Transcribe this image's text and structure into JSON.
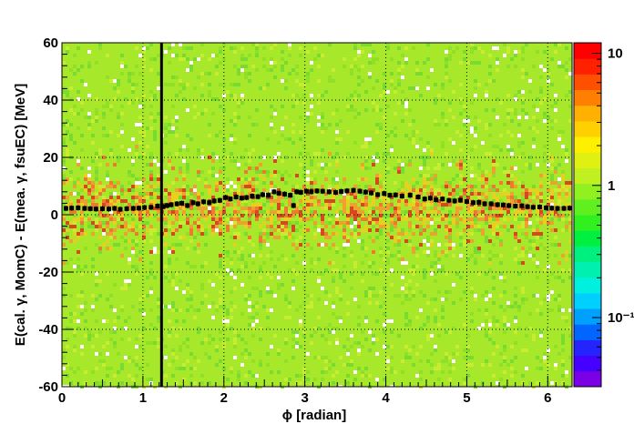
{
  "chart_data": {
    "type": "heatmap",
    "title": "",
    "xlabel": "ϕ [radian]",
    "ylabel": "E(cal. γ, MomC) - E(mea. γ, fsuEC) [MeV]",
    "xlim": [
      0,
      6.3
    ],
    "ylim": [
      -60,
      60
    ],
    "x_ticks": [
      "0",
      "1",
      "2",
      "3",
      "4",
      "5",
      "6"
    ],
    "y_ticks": [
      "-60",
      "-40",
      "-20",
      "0",
      "20",
      "40",
      "60"
    ],
    "colorbar": {
      "scale": "log",
      "range": [
        0.03,
        12
      ],
      "tick_labels": [
        "10",
        "1",
        "10⁻¹"
      ],
      "tick_values": [
        10,
        1,
        0.1
      ],
      "colors": [
        "#7a00e6",
        "#4600ff",
        "#2424ff",
        "#0066ff",
        "#00a0ff",
        "#00d0ff",
        "#00f0e0",
        "#00f0b0",
        "#00f080",
        "#00f040",
        "#30f020",
        "#60f020",
        "#90f020",
        "#c0f020",
        "#e0f010",
        "#fff000",
        "#ffd000",
        "#ffb000",
        "#ff8000",
        "#ff5000",
        "#ff2000",
        "#ff0000"
      ]
    },
    "grid": true,
    "dominant_fill_color": "#a8e82a",
    "band_color": "#e89a30",
    "vertical_line": {
      "x": 1.23,
      "color": "#000000"
    },
    "profile_points": {
      "x": [
        0.05,
        0.12,
        0.2,
        0.28,
        0.35,
        0.42,
        0.5,
        0.58,
        0.65,
        0.72,
        0.8,
        0.88,
        0.95,
        1.02,
        1.1,
        1.18,
        1.25,
        1.3,
        1.35,
        1.42,
        1.48,
        1.55,
        1.62,
        1.68,
        1.75,
        1.82,
        1.88,
        1.95,
        2.02,
        2.08,
        2.15,
        2.22,
        2.28,
        2.35,
        2.42,
        2.48,
        2.55,
        2.62,
        2.68,
        2.75,
        2.82,
        2.86,
        2.9,
        2.95,
        3.02,
        3.08,
        3.15,
        3.22,
        3.3,
        3.38,
        3.45,
        3.52,
        3.6,
        3.68,
        3.75,
        3.82,
        3.9,
        3.98,
        4.05,
        4.12,
        4.2,
        4.3,
        4.4,
        4.48,
        4.55,
        4.62,
        4.7,
        4.78,
        4.85,
        4.92,
        5.0,
        5.08,
        5.15,
        5.22,
        5.3,
        5.38,
        5.45,
        5.52,
        5.6,
        5.68,
        5.75,
        5.82,
        5.9,
        5.98,
        6.05,
        6.12,
        6.2,
        6.27
      ],
      "y": [
        2.2,
        2.3,
        2.4,
        2.2,
        2.1,
        2.0,
        2.1,
        2.0,
        2.2,
        1.9,
        2.1,
        2.2,
        2.3,
        2.5,
        2.6,
        3.0,
        2.8,
        3.2,
        3.5,
        3.8,
        4.0,
        3.2,
        4.2,
        3.8,
        4.5,
        4.2,
        4.8,
        5.0,
        6.0,
        5.5,
        6.2,
        5.8,
        6.0,
        6.5,
        6.3,
        7.0,
        6.8,
        8.0,
        7.5,
        7.2,
        6.8,
        3.2,
        8.0,
        7.8,
        8.2,
        8.0,
        8.3,
        8.2,
        8.0,
        7.8,
        8.1,
        8.3,
        8.5,
        8.2,
        7.9,
        7.6,
        7.0,
        7.4,
        6.8,
        6.9,
        6.5,
        6.8,
        6.2,
        5.5,
        5.8,
        5.2,
        5.5,
        5.0,
        4.8,
        5.1,
        4.6,
        4.2,
        4.3,
        3.8,
        3.8,
        3.5,
        3.4,
        3.2,
        3.0,
        3.1,
        2.8,
        2.6,
        2.7,
        2.4,
        2.3,
        2.2,
        2.2,
        2.3
      ]
    }
  }
}
